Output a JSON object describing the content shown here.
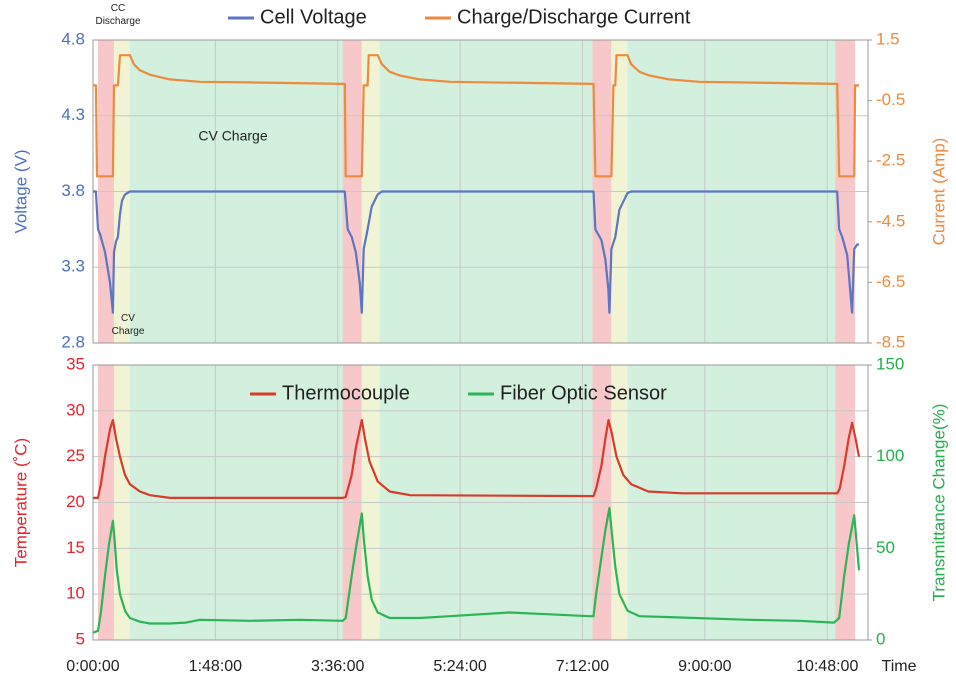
{
  "chart_data": [
    {
      "type": "line",
      "xlim": [
        0,
        684
      ],
      "xticks": [
        0,
        108,
        216,
        324,
        432,
        540,
        648
      ],
      "ylim": [
        2.8,
        4.8
      ],
      "yticks": [
        2.8,
        3.3,
        3.8,
        4.3,
        4.8
      ],
      "y2lim": [
        -8.5,
        1.5
      ],
      "y2ticks": [
        -8.5,
        -6.5,
        -4.5,
        -2.5,
        -0.5,
        1.5
      ],
      "y_label": "Voltage (V)",
      "y2_label": "Current (Amp)",
      "grid": true,
      "legend": "top",
      "annotations": [
        "CC Discharge",
        "CV Charge",
        "CV Charge"
      ],
      "regions": [
        {
          "start": 4.4,
          "end": 18.5,
          "color": "#f7c1c3"
        },
        {
          "start": 18.5,
          "end": 32.6,
          "color": "#eef3cf"
        },
        {
          "start": 32.6,
          "end": 220.4,
          "color": "#cdeed9"
        },
        {
          "start": 220.4,
          "end": 237.2,
          "color": "#f7c1c3"
        },
        {
          "start": 237.2,
          "end": 253,
          "color": "#eef3cf"
        },
        {
          "start": 253,
          "end": 440.8,
          "color": "#cdeed9"
        },
        {
          "start": 440.8,
          "end": 457.5,
          "color": "#f7c1c3"
        },
        {
          "start": 457.5,
          "end": 471.7,
          "color": "#eef3cf"
        },
        {
          "start": 471.7,
          "end": 655,
          "color": "#cdeed9"
        },
        {
          "start": 655,
          "end": 672.6,
          "color": "#f7c1c3"
        }
      ],
      "series": [
        {
          "name": "Cell Voltage",
          "color": "#5b76c2",
          "axis": "y",
          "x": [
            0,
            2.6,
            4.4,
            6.2,
            10.6,
            15,
            17.6,
            18.5,
            20.3,
            22,
            23.8,
            25.6,
            28.2,
            32.6,
            222.2,
            224.8,
            228.3,
            231.9,
            235.4,
            237.2,
            238.9,
            242.4,
            246,
            251.3,
            255,
            441.7,
            443.4,
            448.7,
            452.2,
            454.9,
            455.8,
            457.5,
            461,
            464.6,
            471.7,
            475,
            656.8,
            658.6,
            661.2,
            665.6,
            670,
            671.8,
            674.4,
            676.1
          ],
          "values": [
            3.8,
            3.8,
            3.55,
            3.52,
            3.4,
            3.2,
            3.0,
            3.4,
            3.47,
            3.5,
            3.65,
            3.74,
            3.78,
            3.8,
            3.8,
            3.55,
            3.5,
            3.4,
            3.2,
            3.0,
            3.42,
            3.55,
            3.7,
            3.78,
            3.8,
            3.8,
            3.55,
            3.48,
            3.35,
            3.15,
            3.0,
            3.42,
            3.5,
            3.68,
            3.79,
            3.8,
            3.8,
            3.55,
            3.5,
            3.38,
            3.0,
            3.42,
            3.45,
            3.45
          ]
        },
        {
          "name": "Charge/Discharge Current",
          "color": "#ed8a3d",
          "axis": "y2",
          "x": [
            0,
            2.6,
            3.5,
            17.6,
            18.5,
            22,
            23.8,
            32.6,
            36,
            41.4,
            50.3,
            67.9,
            94.3,
            138.4,
            222.2,
            223,
            237.2,
            238.9,
            242.4,
            243.3,
            251.3,
            255,
            261.9,
            270.7,
            288.3,
            314.7,
            441.7,
            443.4,
            457.5,
            459.3,
            461,
            462,
            471.7,
            475,
            482.3,
            491,
            508.7,
            535.1,
            656.8,
            658.6,
            671.8,
            672.6,
            676.1
          ],
          "values": [
            0,
            0,
            -3.0,
            -3.0,
            0,
            0,
            1.0,
            1.0,
            0.7,
            0.5,
            0.35,
            0.2,
            0.12,
            0.1,
            0.05,
            -3.0,
            -3.0,
            0,
            0,
            1.0,
            1.0,
            0.7,
            0.45,
            0.33,
            0.2,
            0.12,
            0.05,
            -3.0,
            -3.0,
            0,
            0,
            1.0,
            1.0,
            0.7,
            0.45,
            0.33,
            0.2,
            0.12,
            0.05,
            -3.0,
            -3.0,
            0,
            0
          ]
        }
      ]
    },
    {
      "type": "line",
      "xlim": [
        0,
        684
      ],
      "xticks": [
        {
          "value": 0,
          "label": "0:00:00"
        },
        {
          "value": 108,
          "label": "1:48:00"
        },
        {
          "value": 216,
          "label": "3:36:00"
        },
        {
          "value": 324,
          "label": "5:24:00"
        },
        {
          "value": 432,
          "label": "7:12:00"
        },
        {
          "value": 540,
          "label": "9:00:00"
        },
        {
          "value": 648,
          "label": "10:48:00"
        }
      ],
      "x_label": "Time",
      "ylim": [
        5,
        35
      ],
      "yticks": [
        5,
        10,
        15,
        20,
        25,
        30,
        35
      ],
      "y2lim": [
        0,
        150
      ],
      "y2ticks": [
        0,
        50,
        100,
        150
      ],
      "y_label": "Temperature (˚C)",
      "y2_label": "Transmittance  Change(%)",
      "grid": true,
      "legend": "top",
      "series": [
        {
          "name": "Thermocouple",
          "color": "#d83a2b",
          "axis": "y",
          "x": [
            0,
            4.4,
            7,
            10.6,
            15,
            17.6,
            20.3,
            23.8,
            28.2,
            32.6,
            41.4,
            50.3,
            67.9,
            220.4,
            223,
            228.3,
            232,
            237.2,
            240,
            244,
            251.3,
            261.9,
            280,
            441.7,
            444,
            448.7,
            452.2,
            455,
            458,
            462,
            468,
            475,
            490,
            520,
            656.8,
            659,
            663,
            667,
            670,
            673,
            676.1
          ],
          "values": [
            20.5,
            20.5,
            22,
            25,
            28,
            29,
            27,
            25,
            23,
            22,
            21.2,
            20.8,
            20.5,
            20.5,
            20.6,
            23,
            26,
            29,
            27,
            24.5,
            22.3,
            21.2,
            20.8,
            20.7,
            21.5,
            24,
            27,
            29,
            27.5,
            25,
            23,
            22,
            21.2,
            21,
            21,
            21.5,
            24,
            27,
            28.7,
            27,
            25
          ]
        },
        {
          "name": "Fiber Optic Sensor",
          "color": "#2bb556",
          "axis": "y2",
          "x": [
            0,
            4.4,
            7,
            10.6,
            14,
            17.6,
            19,
            21,
            23.8,
            28.2,
            32.6,
            41.4,
            50.3,
            67.9,
            82,
            94.3,
            138.4,
            182.5,
            220.4,
            223,
            228.3,
            232,
            237.2,
            239,
            242.4,
            246,
            251.3,
            261.9,
            288.3,
            314.7,
            367.6,
            402.9,
            438.2,
            441.7,
            444,
            448.7,
            452.2,
            455.8,
            458,
            461,
            464.6,
            471.7,
            482.3,
            508.7,
            579.2,
            623.3,
            654.1,
            658.6,
            663,
            667,
            671.8,
            674.4,
            676.1
          ],
          "values": [
            4,
            5,
            15,
            35,
            52,
            65,
            55,
            38,
            25,
            16,
            12,
            10,
            9,
            9,
            9.5,
            11,
            10.5,
            11,
            10.5,
            12,
            35,
            50,
            69,
            55,
            35,
            22,
            15,
            12,
            12,
            13,
            15,
            14,
            13,
            13,
            25,
            45,
            60,
            72,
            58,
            40,
            25,
            16,
            13,
            12.5,
            11,
            10.5,
            9.5,
            12,
            35,
            52,
            68,
            50,
            38
          ]
        }
      ]
    }
  ]
}
